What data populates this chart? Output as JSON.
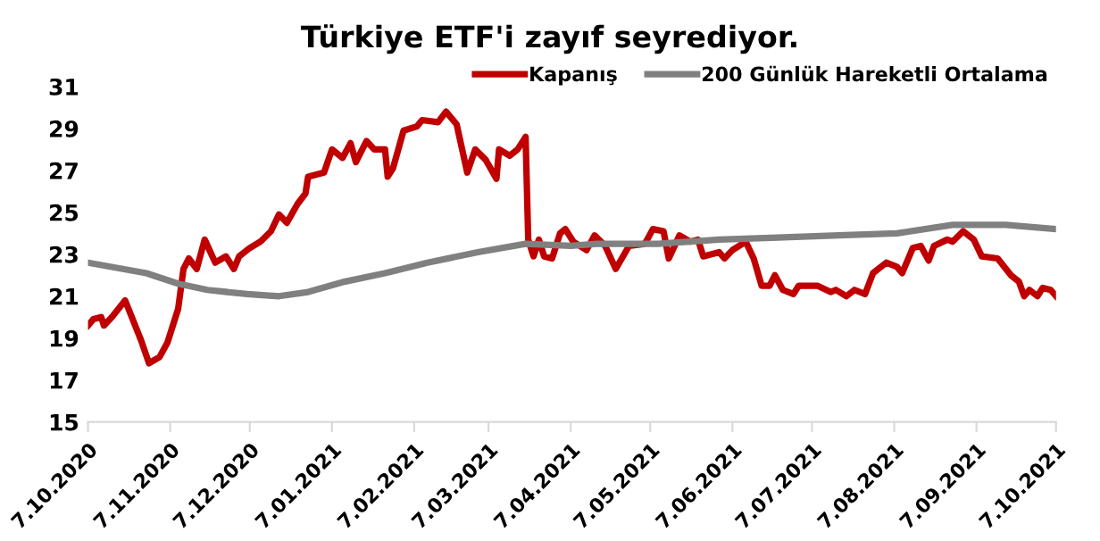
{
  "chart_data": {
    "type": "line",
    "title": "Türkiye ETF'i zayıf seyrediyor.",
    "xlim": [
      "2020-10-07",
      "2021-10-07"
    ],
    "xticks": [
      {
        "value": "2020-10-07",
        "label": "7.10.2020"
      },
      {
        "value": "2020-11-07",
        "label": "7.11.2020"
      },
      {
        "value": "2020-12-07",
        "label": "7.12.2020"
      },
      {
        "value": "2021-01-07",
        "label": "7.01.2021"
      },
      {
        "value": "2021-02-07",
        "label": "7.02.2021"
      },
      {
        "value": "2021-03-07",
        "label": "7.03.2021"
      },
      {
        "value": "2021-04-07",
        "label": "7.04.2021"
      },
      {
        "value": "2021-05-07",
        "label": "7.05.2021"
      },
      {
        "value": "2021-06-07",
        "label": "7.06.2021"
      },
      {
        "value": "2021-07-07",
        "label": "7.07.2021"
      },
      {
        "value": "2021-08-07",
        "label": "7.08.2021"
      },
      {
        "value": "2021-09-07",
        "label": "7.09.2021"
      },
      {
        "value": "2021-10-07",
        "label": "7.10.2021"
      }
    ],
    "ylim": [
      15,
      31
    ],
    "yticks": [
      15,
      17,
      19,
      21,
      23,
      25,
      27,
      29,
      31
    ],
    "grid": false,
    "legend": "top right",
    "marker": "none",
    "line_style": "solid",
    "series": [
      {
        "name": "Kapanış",
        "color": "#c00000",
        "x": [
          "2020-10-07",
          "2020-10-09",
          "2020-10-12",
          "2020-10-13",
          "2020-10-16",
          "2020-10-21",
          "2020-10-27",
          "2020-10-30",
          "2020-11-03",
          "2020-11-06",
          "2020-11-10",
          "2020-11-12",
          "2020-11-14",
          "2020-11-17",
          "2020-11-20",
          "2020-11-24",
          "2020-11-28",
          "2020-12-01",
          "2020-12-03",
          "2020-12-07",
          "2020-12-11",
          "2020-12-15",
          "2020-12-18",
          "2020-12-21",
          "2020-12-25",
          "2020-12-28",
          "2020-12-29",
          "2021-01-04",
          "2021-01-07",
          "2021-01-11",
          "2021-01-14",
          "2021-01-16",
          "2021-01-20",
          "2021-01-23",
          "2021-01-27",
          "2021-01-28",
          "2021-01-30",
          "2021-02-03",
          "2021-02-08",
          "2021-02-10",
          "2021-02-16",
          "2021-02-19",
          "2021-02-23",
          "2021-02-27",
          "2021-03-02",
          "2021-03-06",
          "2021-03-10",
          "2021-03-11",
          "2021-03-15",
          "2021-03-18",
          "2021-03-21",
          "2021-03-22",
          "2021-03-24",
          "2021-03-26",
          "2021-03-28",
          "2021-03-31",
          "2021-04-03",
          "2021-04-05",
          "2021-04-08",
          "2021-04-13",
          "2021-04-16",
          "2021-04-20",
          "2021-04-24",
          "2021-04-29",
          "2021-05-05",
          "2021-05-08",
          "2021-05-12",
          "2021-05-14",
          "2021-05-18",
          "2021-05-22",
          "2021-05-25",
          "2021-05-27",
          "2021-06-02",
          "2021-06-04",
          "2021-06-07",
          "2021-06-12",
          "2021-06-15",
          "2021-06-18",
          "2021-06-21",
          "2021-06-23",
          "2021-06-26",
          "2021-06-30",
          "2021-07-02",
          "2021-07-09",
          "2021-07-14",
          "2021-07-16",
          "2021-07-20",
          "2021-07-23",
          "2021-07-27",
          "2021-07-30",
          "2021-08-04",
          "2021-08-08",
          "2021-08-10",
          "2021-08-14",
          "2021-08-17",
          "2021-08-20",
          "2021-08-22",
          "2021-08-27",
          "2021-08-29",
          "2021-09-02",
          "2021-09-06",
          "2021-09-09",
          "2021-09-15",
          "2021-09-20",
          "2021-09-23",
          "2021-09-25",
          "2021-09-27",
          "2021-09-30",
          "2021-10-02",
          "2021-10-05",
          "2021-10-07"
        ],
        "values": [
          19.6,
          19.9,
          20.0,
          19.6,
          20.0,
          20.8,
          18.9,
          17.8,
          18.1,
          18.8,
          20.4,
          22.3,
          22.8,
          22.3,
          23.7,
          22.6,
          22.9,
          22.3,
          22.9,
          23.3,
          23.6,
          24.1,
          24.9,
          24.5,
          25.4,
          25.9,
          26.7,
          26.9,
          28.0,
          27.6,
          28.3,
          27.4,
          28.4,
          28.0,
          28.0,
          26.7,
          27.1,
          28.9,
          29.1,
          29.4,
          29.3,
          29.8,
          29.2,
          26.9,
          28.0,
          27.5,
          26.6,
          28.0,
          27.7,
          28.0,
          28.6,
          23.7,
          22.9,
          23.7,
          22.9,
          22.8,
          24.0,
          24.2,
          23.6,
          23.2,
          23.9,
          23.4,
          22.3,
          23.4,
          23.5,
          24.2,
          24.1,
          22.8,
          23.9,
          23.6,
          23.7,
          22.9,
          23.1,
          22.8,
          23.2,
          23.6,
          22.8,
          21.5,
          21.5,
          22.0,
          21.3,
          21.1,
          21.5,
          21.5,
          21.2,
          21.3,
          21.0,
          21.3,
          21.1,
          22.1,
          22.6,
          22.4,
          22.1,
          23.3,
          23.4,
          22.7,
          23.4,
          23.7,
          23.6,
          24.1,
          23.7,
          22.9,
          22.8,
          22.0,
          21.7,
          21.0,
          21.3,
          21.0,
          21.4,
          21.3,
          21.0
        ]
      },
      {
        "name": "200 Günlük Hareketli Ortalama",
        "color": "#808080",
        "x": [
          "2020-10-07",
          "2020-10-29",
          "2020-11-10",
          "2020-11-21",
          "2020-12-06",
          "2020-12-18",
          "2020-12-29",
          "2021-01-12",
          "2021-01-27",
          "2021-02-12",
          "2021-03-03",
          "2021-03-21",
          "2021-04-07",
          "2021-04-17",
          "2021-05-10",
          "2021-06-02",
          "2021-06-24",
          "2021-07-17",
          "2021-08-08",
          "2021-08-29",
          "2021-09-18",
          "2021-10-07"
        ],
        "values": [
          22.6,
          22.1,
          21.6,
          21.3,
          21.1,
          21.0,
          21.2,
          21.7,
          22.1,
          22.6,
          23.1,
          23.5,
          23.4,
          23.5,
          23.5,
          23.7,
          23.8,
          23.9,
          24.0,
          24.4,
          24.4,
          24.2
        ]
      }
    ]
  }
}
